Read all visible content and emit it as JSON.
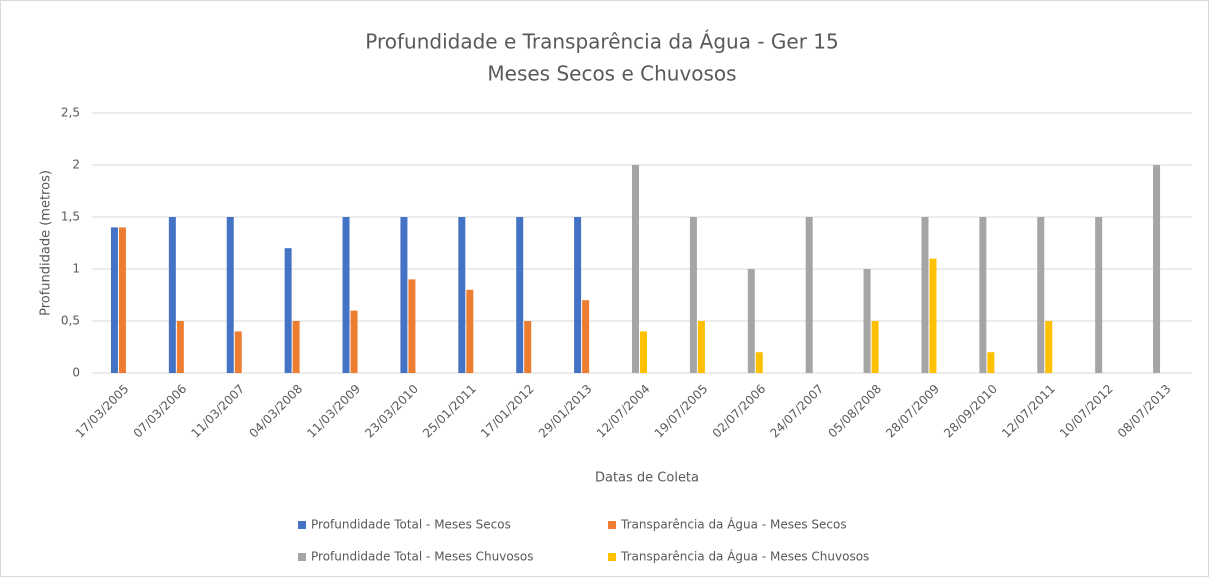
{
  "chart_data": {
    "type": "bar",
    "title": "Profundidade e Transparência da Água - Ger 15",
    "subtitle": "Meses Secos e Chuvosos",
    "x_label": "Datas de Coleta",
    "y_label": "Profundidade (metros)",
    "categories": [
      "17/03/2005",
      "07/03/2006",
      "11/03/2007",
      "04/03/2008",
      "11/03/2009",
      "23/03/2010",
      "25/01/2011",
      "17/01/2012",
      "29/01/2013",
      "12/07/2004",
      "19/07/2005",
      "02/07/2006",
      "24/07/2007",
      "05/08/2008",
      "28/07/2009",
      "28/09/2010",
      "12/07/2011",
      "10/07/2012",
      "08/07/2013"
    ],
    "series": [
      {
        "name": "Profundidade Total - Meses Secos",
        "color": "#4472c4",
        "values": [
          1.4,
          1.5,
          1.5,
          1.2,
          1.5,
          1.5,
          1.5,
          1.5,
          1.5,
          null,
          null,
          null,
          null,
          null,
          null,
          null,
          null,
          null,
          null
        ]
      },
      {
        "name": "Transparência da Água - Meses Secos",
        "color": "#ed7d31",
        "values": [
          1.4,
          0.5,
          0.4,
          0.5,
          0.6,
          0.9,
          0.8,
          0.5,
          0.7,
          null,
          null,
          null,
          null,
          null,
          null,
          null,
          null,
          null,
          null
        ]
      },
      {
        "name": "Profundidade Total - Meses Chuvosos",
        "color": "#a5a5a5",
        "values": [
          null,
          null,
          null,
          null,
          null,
          null,
          null,
          null,
          null,
          2,
          1.5,
          1,
          1.5,
          1,
          1.5,
          1.5,
          1.5,
          1.5,
          2
        ]
      },
      {
        "name": "Transparência da Água - Meses Chuvosos",
        "color": "#ffc000",
        "values": [
          null,
          null,
          null,
          null,
          null,
          null,
          null,
          null,
          null,
          0.4,
          0.5,
          0.2,
          null,
          0.5,
          1.1,
          0.2,
          0.5,
          null,
          null
        ]
      }
    ],
    "ylim": [
      0,
      2.5
    ],
    "yticks": [
      0,
      {
        "value": 0.5,
        "label": "0,5"
      },
      1,
      {
        "value": 1.5,
        "label": "1,5"
      },
      2,
      {
        "value": 2.5,
        "label": "2,5"
      }
    ],
    "grid": true,
    "legend": "bottom"
  }
}
